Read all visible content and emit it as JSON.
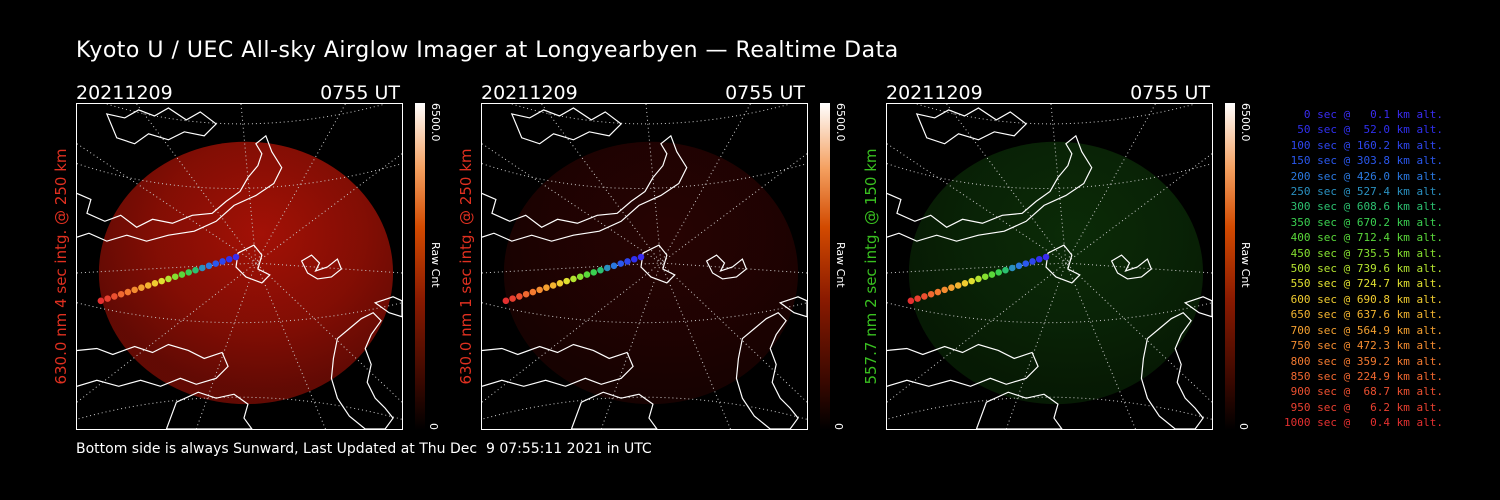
{
  "title": "Kyoto U / UEC All-sky Airglow Imager at Longyearbyen — Realtime Data",
  "panels": [
    {
      "date": "20211209",
      "time": "0755 UT",
      "side_label": "630.0 nm 4 sec intg. @ 250 km",
      "side_color": "#e03020",
      "glow": "#e81808",
      "glow_opacity": 0.7,
      "cbar_max": "6500.0",
      "cbar_unit": "Raw Cnt",
      "cbar_min": "0"
    },
    {
      "date": "20211209",
      "time": "0755 UT",
      "side_label": "630.0 nm 1 sec intg. @ 250 km",
      "side_color": "#e03020",
      "glow": "#b00e08",
      "glow_opacity": 0.22,
      "cbar_max": "6500.0",
      "cbar_unit": "Raw Cnt",
      "cbar_min": "0"
    },
    {
      "date": "20211209",
      "time": "0755 UT",
      "side_label": "557.7 nm 2 sec intg. @ 150 km",
      "side_color": "#39c020",
      "glow": "#1f7a14",
      "glow_opacity": 0.35,
      "cbar_max": "6500.0",
      "cbar_unit": "Raw Cnt",
      "cbar_min": "0"
    }
  ],
  "legend": [
    {
      "text": "0 sec @   0.1 km alt.",
      "color": "#3a2cf0"
    },
    {
      "text": "50 sec @  52.0 km alt.",
      "color": "#3030f0"
    },
    {
      "text": "100 sec @ 160.2 km alt.",
      "color": "#2e46ee"
    },
    {
      "text": "150 sec @ 303.8 km alt.",
      "color": "#2a58ee"
    },
    {
      "text": "200 sec @ 426.0 km alt.",
      "color": "#2a78e0"
    },
    {
      "text": "250 sec @ 527.4 km alt.",
      "color": "#2a90c0"
    },
    {
      "text": "300 sec @ 608.6 km alt.",
      "color": "#2cc070"
    },
    {
      "text": "350 sec @ 670.2 km alt.",
      "color": "#3ad050"
    },
    {
      "text": "400 sec @ 712.4 km alt.",
      "color": "#5ad83a"
    },
    {
      "text": "450 sec @ 735.5 km alt.",
      "color": "#86e030"
    },
    {
      "text": "500 sec @ 739.6 km alt.",
      "color": "#b4e430"
    },
    {
      "text": "550 sec @ 724.7 km alt.",
      "color": "#e0e030"
    },
    {
      "text": "600 sec @ 690.8 km alt.",
      "color": "#f0cc30"
    },
    {
      "text": "650 sec @ 637.6 km alt.",
      "color": "#f4b430"
    },
    {
      "text": "700 sec @ 564.9 km alt.",
      "color": "#f4a030"
    },
    {
      "text": "750 sec @ 472.3 km alt.",
      "color": "#f48c30"
    },
    {
      "text": "800 sec @ 359.2 km alt.",
      "color": "#f47a30"
    },
    {
      "text": "850 sec @ 224.9 km alt.",
      "color": "#f06830"
    },
    {
      "text": "900 sec @  68.7 km alt.",
      "color": "#ec5030"
    },
    {
      "text": "950 sec @   6.2 km alt.",
      "color": "#e84030"
    },
    {
      "text": "1000 sec @   0.4 km alt.",
      "color": "#e43030"
    }
  ],
  "footer": "Bottom side is always Sunward, Last Updated at Thu Dec  9 07:55:11 2021 in UTC",
  "colors": {
    "background": "#000000",
    "text": "#ffffff",
    "coast": "#ffffff",
    "grid": "#cccccc"
  }
}
